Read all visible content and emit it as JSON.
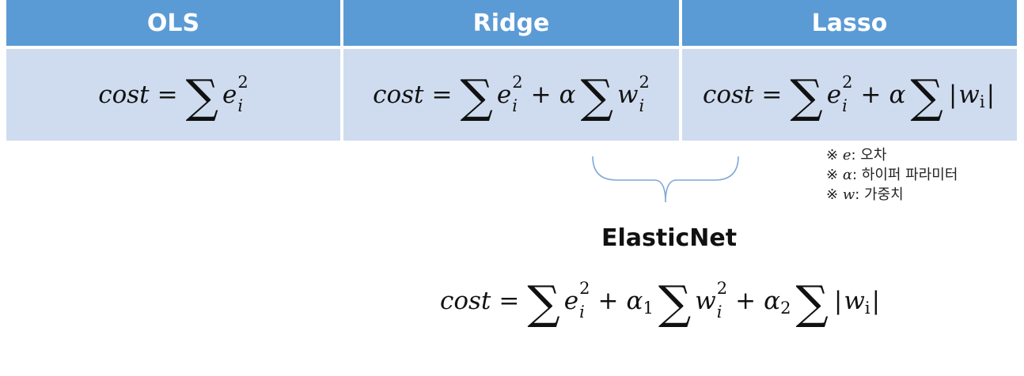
{
  "columns": [
    "OLS",
    "Ridge",
    "Lasso"
  ],
  "formula": {
    "lhs": "cost",
    "eq": "=",
    "plus": "+",
    "sum": "∑",
    "e": "e",
    "w": "w",
    "i": "i",
    "two": "2",
    "alpha": "α",
    "bar": "|",
    "one": "1"
  },
  "notes": [
    {
      "mark": "※",
      "sym": "e",
      "desc": ": 오차"
    },
    {
      "mark": "※",
      "sym": "α",
      "desc": ": 하이퍼 파라미터"
    },
    {
      "mark": "※",
      "sym": "w",
      "desc": ": 가중치"
    }
  ],
  "elasticnet": {
    "title": "ElasticNet"
  },
  "colors": {
    "header": "#5b9bd5",
    "body": "#cfdcef",
    "brace": "#7fa8d6"
  }
}
